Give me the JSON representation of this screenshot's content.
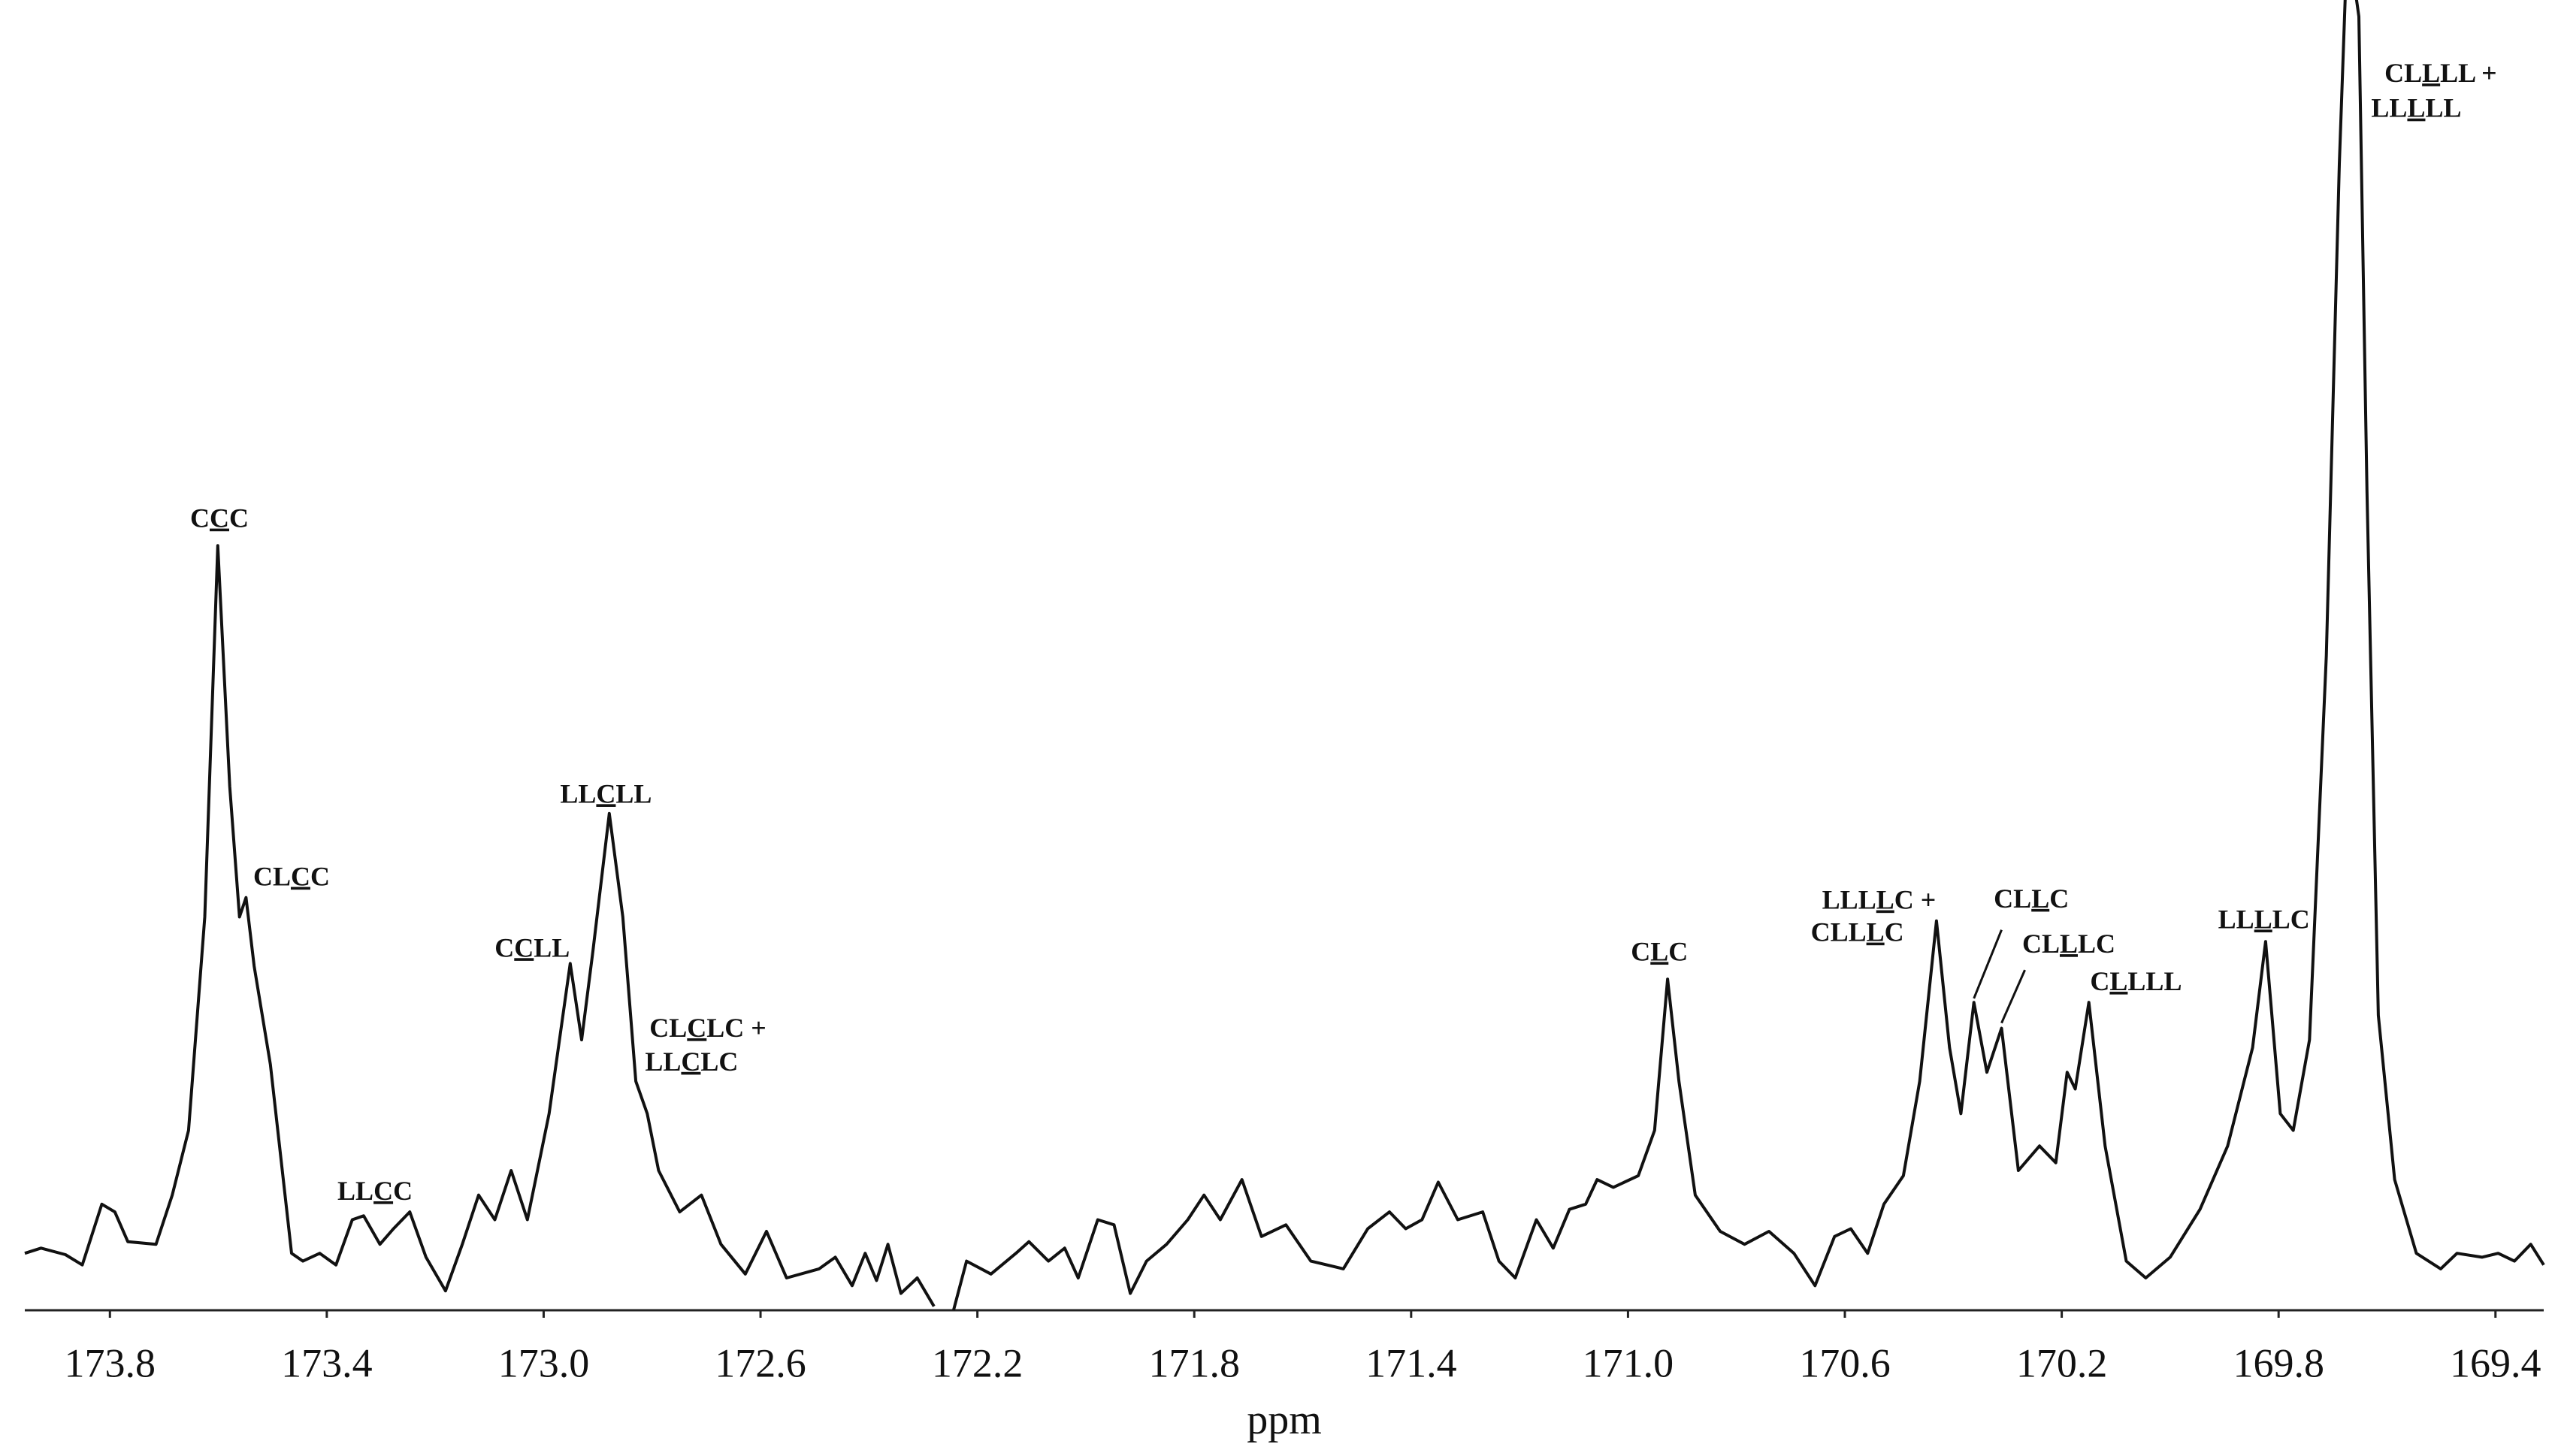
{
  "chart_data": {
    "type": "line",
    "xlabel": "ppm",
    "xlim": [
      173.957,
      169.311
    ],
    "ylim": [
      0,
      100
    ],
    "xticks": [
      173.8,
      173.4,
      {
        "value": 173,
        "label": "173.0"
      },
      172.6,
      172.2,
      171.8,
      171.4,
      {
        "value": 171,
        "label": "171.0"
      },
      170.6,
      170.2,
      169.8,
      169.4
    ],
    "color": "#111111",
    "x": [
      173.957,
      173.927,
      173.882,
      173.851,
      173.815,
      173.791,
      173.767,
      173.715,
      173.685,
      173.655,
      173.625,
      173.601,
      173.579,
      173.561,
      173.549,
      173.534,
      173.504,
      173.465,
      173.444,
      173.413,
      173.383,
      173.353,
      173.332,
      173.302,
      173.277,
      173.247,
      173.217,
      173.181,
      173.15,
      173.12,
      173.09,
      173.06,
      173.03,
      172.99,
      172.951,
      172.93,
      172.909,
      172.879,
      172.854,
      172.83,
      172.809,
      172.788,
      172.749,
      172.709,
      172.673,
      172.628,
      172.589,
      172.552,
      172.492,
      172.462,
      172.431,
      172.407,
      172.386,
      172.365,
      172.341,
      172.311,
      172.28,
      172.262,
      172.244,
      172.22,
      172.175,
      172.129,
      172.105,
      172.069,
      172.039,
      172.014,
      171.978,
      171.948,
      171.918,
      171.888,
      171.851,
      171.812,
      171.782,
      171.752,
      171.712,
      171.676,
      171.631,
      171.585,
      171.525,
      171.48,
      171.44,
      171.41,
      171.38,
      171.35,
      171.314,
      171.268,
      171.238,
      171.208,
      171.169,
      171.138,
      171.108,
      171.078,
      171.057,
      171.027,
      170.981,
      170.951,
      170.927,
      170.906,
      170.876,
      170.83,
      170.785,
      170.74,
      170.694,
      170.655,
      170.619,
      170.589,
      170.558,
      170.528,
      170.492,
      170.462,
      170.431,
      170.407,
      170.386,
      170.362,
      170.338,
      170.311,
      170.28,
      170.241,
      170.211,
      170.19,
      170.175,
      170.15,
      170.12,
      170.081,
      170.045,
      170.0,
      169.945,
      169.894,
      169.848,
      169.824,
      169.797,
      169.773,
      169.743,
      169.712,
      169.688,
      169.673,
      169.652,
      169.637,
      169.616,
      169.586,
      169.546,
      169.501,
      169.471,
      169.425,
      169.395,
      169.365,
      169.335,
      169.311
    ],
    "values": [
      4.4,
      4.8,
      4.3,
      3.5,
      8.2,
      7.6,
      5.3,
      5.1,
      8.9,
      13.9,
      30.4,
      59.1,
      40.5,
      30.4,
      31.9,
      26.6,
      19.0,
      4.4,
      3.8,
      4.4,
      3.5,
      7.0,
      7.3,
      5.1,
      6.3,
      7.6,
      4.1,
      1.5,
      5.1,
      8.9,
      7.0,
      10.8,
      7.0,
      15.2,
      26.8,
      20.9,
      27.8,
      38.4,
      30.4,
      17.7,
      15.2,
      10.8,
      7.6,
      8.9,
      5.1,
      2.8,
      6.1,
      2.5,
      3.2,
      4.1,
      1.9,
      4.4,
      2.3,
      5.1,
      1.3,
      2.5,
      0.3,
      null,
      0,
      3.8,
      2.8,
      4.4,
      5.3,
      3.8,
      4.8,
      2.5,
      7.0,
      6.6,
      1.3,
      3.8,
      5.1,
      7.0,
      8.9,
      7.0,
      10.1,
      5.7,
      6.6,
      3.8,
      3.2,
      6.3,
      7.6,
      6.3,
      7.0,
      9.9,
      7.0,
      7.6,
      3.8,
      2.5,
      7.0,
      4.8,
      7.8,
      8.2,
      10.1,
      9.5,
      10.4,
      13.9,
      25.6,
      17.7,
      8.9,
      6.1,
      5.1,
      6.1,
      4.4,
      1.9,
      5.7,
      6.3,
      4.4,
      8.2,
      10.4,
      17.7,
      30.1,
      20.3,
      15.2,
      23.8,
      18.4,
      21.8,
      10.8,
      12.7,
      11.4,
      18.4,
      17.1,
      23.8,
      12.7,
      3.8,
      2.5,
      4.1,
      7.8,
      12.7,
      20.3,
      28.5,
      15.2,
      13.9,
      20.9,
      50.6,
      88.6,
      106.3,
      100,
      63.3,
      22.8,
      10.1,
      4.4,
      3.2,
      4.4,
      4.1,
      4.4,
      3.8,
      5.1,
      3.5
    ],
    "annotations": [
      {
        "text": "CCC",
        "underline": 1,
        "x": 173.598,
        "y": 61.0
      },
      {
        "text": "CLCC",
        "underline": 2,
        "x": 173.465,
        "y": 33.3
      },
      {
        "text": "LLCC",
        "underline": 2,
        "x": 173.311,
        "y": 9.0
      },
      {
        "text": "CCLL",
        "underline": 1,
        "x": 173.021,
        "y": 27.8
      },
      {
        "text": "LLCLL",
        "underline": 2,
        "x": 172.885,
        "y": 39.7
      },
      {
        "text": "CLCLC +",
        "underline": 2,
        "x": 172.697,
        "y": 21.6
      },
      {
        "text": "LLCLC",
        "underline": 2,
        "x": 172.727,
        "y": 19.0
      },
      {
        "text": "CLC",
        "underline": 1,
        "x": 170.942,
        "y": 27.5
      },
      {
        "text": "LLLLC +",
        "underline": 3,
        "x": 170.537,
        "y": 31.5
      },
      {
        "text": "CLLLC",
        "underline": 3,
        "x": 170.577,
        "y": 29.0
      },
      {
        "text": "CLLC",
        "underline": 2,
        "x": 170.256,
        "y": 31.6,
        "xy": [
          170.362,
          24.1
        ],
        "from": [
          170.311,
          29.4
        ]
      },
      {
        "text": "CLLLC",
        "underline": 2,
        "x": 170.187,
        "y": 28.1,
        "xy": [
          170.311,
          22.2
        ],
        "from": [
          170.268,
          26.3
        ]
      },
      {
        "text": "CLLLL",
        "underline": 1,
        "x": 170.063,
        "y": 25.2
      },
      {
        "text": "LLLLC",
        "underline": 2,
        "x": 169.827,
        "y": 30.0
      },
      {
        "text": "CLLLL +",
        "underline": 2,
        "x": 169.501,
        "y": 95.4
      },
      {
        "text": "LLLLL",
        "underline": 2,
        "x": 169.546,
        "y": 92.7
      }
    ]
  }
}
